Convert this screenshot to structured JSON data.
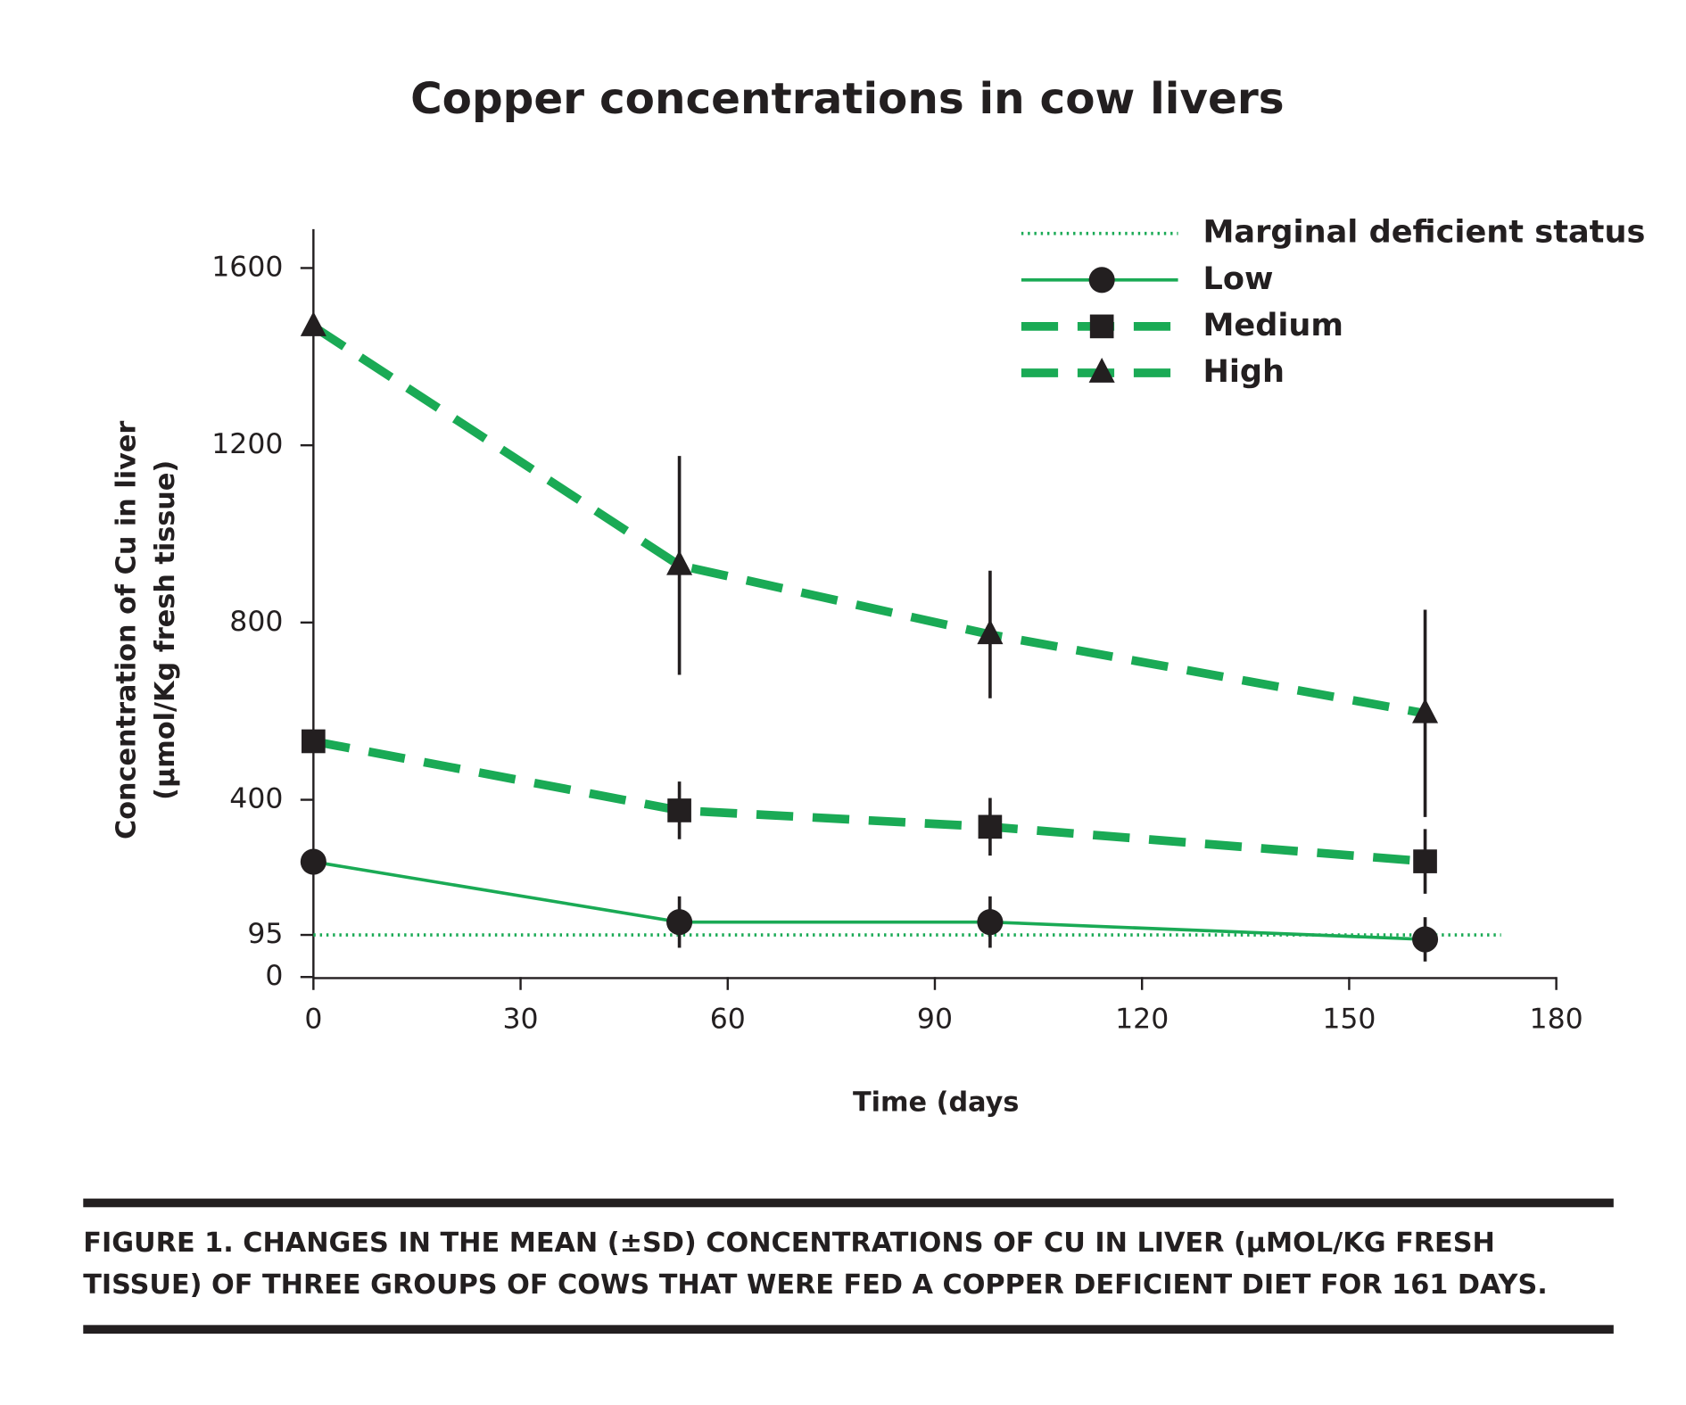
{
  "chart_data": {
    "type": "line",
    "title": "Copper concentrations in cow livers",
    "xlabel": "Time (days",
    "ylabel": [
      "Concentration of Cu in liver",
      "(μmol/Kg fresh tissue)"
    ],
    "x": [
      0,
      53,
      98,
      161
    ],
    "xlim": [
      0,
      180
    ],
    "xticks": [
      0,
      30,
      60,
      90,
      120,
      150,
      180
    ],
    "ylim": [
      0,
      1700
    ],
    "yticks": [
      0,
      95,
      400,
      800,
      1200,
      1600
    ],
    "legend": "upper right",
    "series": [
      {
        "name": "Marginal deficient status",
        "color": "#1aaa55",
        "style": "dotted",
        "x": [
          0,
          172
        ],
        "values": [
          95,
          95
        ]
      },
      {
        "name": "Low",
        "color": "#1aaa55",
        "style": "solid",
        "marker": "circle",
        "values": [
          260,
          124,
          124,
          85
        ],
        "errors": [
          0,
          58,
          58,
          50
        ]
      },
      {
        "name": "Medium",
        "color": "#1aaa55",
        "style": "dashed",
        "marker": "square",
        "values": [
          532,
          376,
          339,
          261
        ],
        "errors": [
          0,
          65,
          65,
          73
        ]
      },
      {
        "name": "High",
        "color": "#1aaa55",
        "style": "dashed",
        "marker": "triangle",
        "values": [
          1468,
          929,
          773,
          595
        ],
        "errors": [
          0,
          247,
          144,
          234
        ]
      }
    ],
    "caption": [
      "FIGURE 1. CHANGES IN THE MEAN (±SD) CONCENTRATIONS OF CU IN LIVER (μMOL/KG FRESH",
      "TISSUE) OF THREE GROUPS OF COWS THAT WERE FED A COPPER DEFICIENT DIET FOR 161 DAYS."
    ]
  }
}
